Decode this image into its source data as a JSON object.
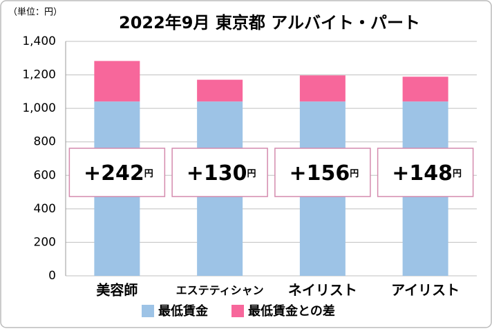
{
  "chart_data": {
    "type": "stacked_bar",
    "title": "2022年9月 東京都 アルバイト・パート",
    "unit_note": "（単位：円）",
    "categories": [
      "美容師",
      "エステティシャン",
      "ネイリスト",
      "アイリスト"
    ],
    "series": [
      {
        "name": "最低賃金",
        "color": "#9dc3e6",
        "values": [
          1041,
          1041,
          1041,
          1041
        ]
      },
      {
        "name": "最低賃金との差",
        "color": "#f7679b",
        "values": [
          242,
          130,
          156,
          148
        ],
        "value_labels": [
          "+242",
          "+130",
          "+156",
          "+148"
        ],
        "value_label_unit": "円"
      }
    ],
    "ylim": [
      0,
      1400
    ],
    "yticks": [
      0,
      200,
      400,
      600,
      800,
      {
        "value": 1000,
        "label": "1,000"
      },
      {
        "value": 1200,
        "label": "1,200"
      },
      {
        "value": 1400,
        "label": "1,400"
      }
    ],
    "grid": true
  }
}
